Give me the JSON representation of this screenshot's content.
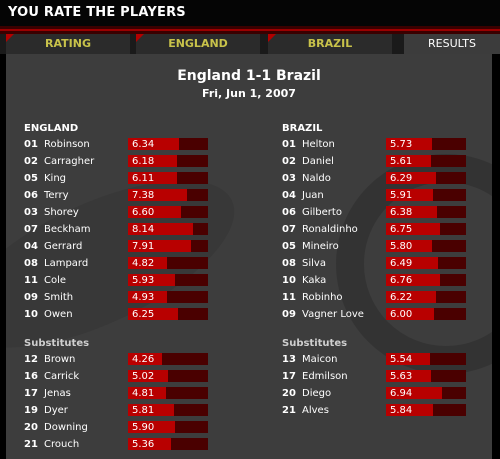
{
  "header": {
    "title": "YOU RATE THE PLAYERS"
  },
  "tabs": [
    {
      "label": "RATING",
      "active": false
    },
    {
      "label": "ENGLAND",
      "active": false
    },
    {
      "label": "BRAZIL",
      "active": false
    },
    {
      "label": "RESULTS",
      "active": true
    }
  ],
  "match": {
    "title": "England 1-1 Brazil",
    "date": "Fri, Jun 1, 2007"
  },
  "england": {
    "team_label": "ENGLAND",
    "players": [
      {
        "num": "01",
        "name": "Robinson",
        "rating": "6.34"
      },
      {
        "num": "02",
        "name": "Carragher",
        "rating": "6.18"
      },
      {
        "num": "05",
        "name": "King",
        "rating": "6.11"
      },
      {
        "num": "06",
        "name": "Terry",
        "rating": "7.38"
      },
      {
        "num": "03",
        "name": "Shorey",
        "rating": "6.60"
      },
      {
        "num": "07",
        "name": "Beckham",
        "rating": "8.14"
      },
      {
        "num": "04",
        "name": "Gerrard",
        "rating": "7.91"
      },
      {
        "num": "08",
        "name": "Lampard",
        "rating": "4.82"
      },
      {
        "num": "11",
        "name": "Cole",
        "rating": "5.93"
      },
      {
        "num": "09",
        "name": "Smith",
        "rating": "4.93"
      },
      {
        "num": "10",
        "name": "Owen",
        "rating": "6.25"
      }
    ],
    "subs_label": "Substitutes",
    "subs": [
      {
        "num": "12",
        "name": "Brown",
        "rating": "4.26"
      },
      {
        "num": "16",
        "name": "Carrick",
        "rating": "5.02"
      },
      {
        "num": "17",
        "name": "Jenas",
        "rating": "4.81"
      },
      {
        "num": "19",
        "name": "Dyer",
        "rating": "5.81"
      },
      {
        "num": "20",
        "name": "Downing",
        "rating": "5.90"
      },
      {
        "num": "21",
        "name": "Crouch",
        "rating": "5.36"
      }
    ]
  },
  "brazil": {
    "team_label": "BRAZIL",
    "players": [
      {
        "num": "01",
        "name": "Helton",
        "rating": "5.73"
      },
      {
        "num": "02",
        "name": "Daniel",
        "rating": "5.61"
      },
      {
        "num": "03",
        "name": "Naldo",
        "rating": "6.29"
      },
      {
        "num": "04",
        "name": "Juan",
        "rating": "5.91"
      },
      {
        "num": "06",
        "name": "Gilberto",
        "rating": "6.38"
      },
      {
        "num": "07",
        "name": "Ronaldinho",
        "rating": "6.75"
      },
      {
        "num": "05",
        "name": "Mineiro",
        "rating": "5.80"
      },
      {
        "num": "08",
        "name": "Silva",
        "rating": "6.49"
      },
      {
        "num": "10",
        "name": "Kaka",
        "rating": "6.76"
      },
      {
        "num": "11",
        "name": "Robinho",
        "rating": "6.22"
      },
      {
        "num": "09",
        "name": "Vagner Love",
        "rating": "6.00"
      }
    ],
    "subs_label": "Substitutes",
    "subs": [
      {
        "num": "13",
        "name": "Maicon",
        "rating": "5.54"
      },
      {
        "num": "17",
        "name": "Edmilson",
        "rating": "5.63"
      },
      {
        "num": "20",
        "name": "Diego",
        "rating": "6.94"
      },
      {
        "num": "21",
        "name": "Alves",
        "rating": "5.84"
      }
    ]
  },
  "colors": {
    "bar": "#b80000",
    "bar_track": "#4a0000",
    "tab_text": "#c8c24a",
    "accent_red": "#9a0000"
  }
}
